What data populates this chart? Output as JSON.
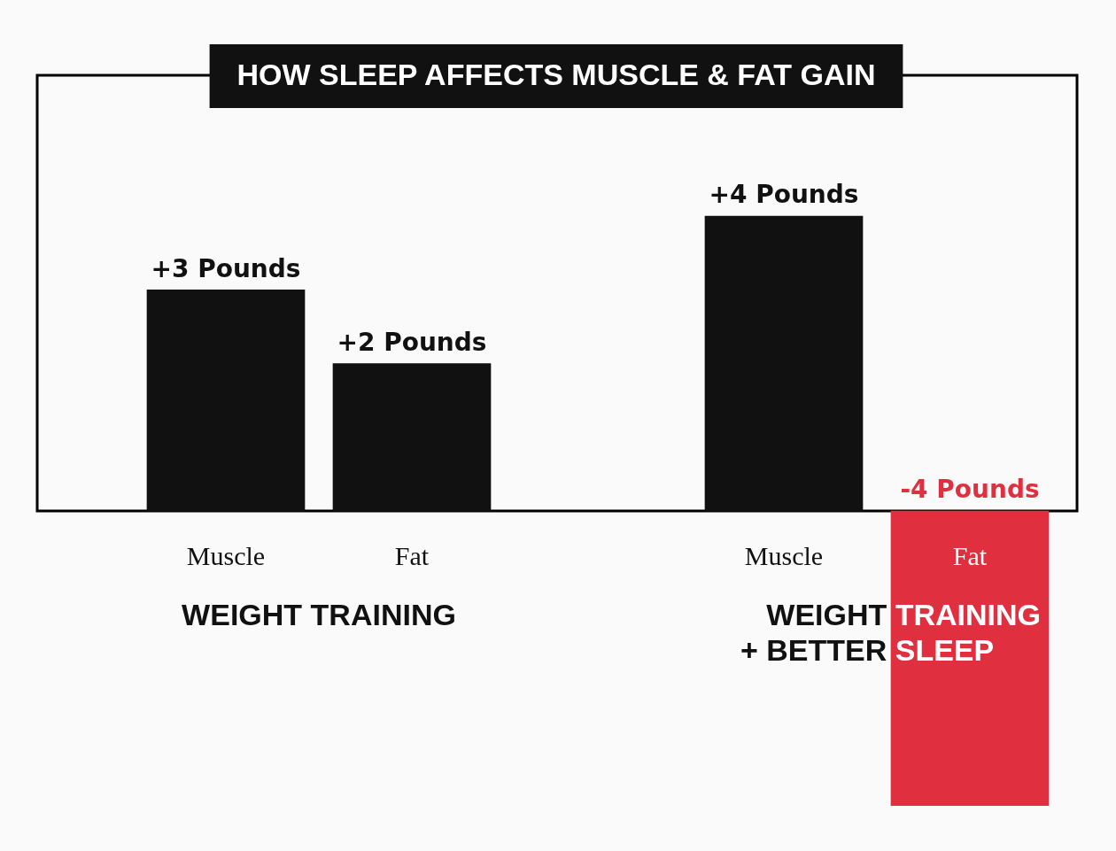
{
  "chart_data": {
    "type": "bar",
    "title": "HOW SLEEP AFFECTS MUSCLE & FAT GAIN",
    "categories": [
      "Muscle",
      "Fat",
      null,
      "Muscle",
      "Fat"
    ],
    "values": [
      3,
      2,
      null,
      4,
      -4
    ],
    "colors": [
      "#111111",
      "#111111",
      "#111111",
      "#111111",
      "#e03040"
    ],
    "value_labels": [
      "+3 Pounds",
      "+2 Pounds",
      null,
      "+4 Pounds",
      "-4 Pounds"
    ],
    "annotations": [
      "WEIGHT TRAINING",
      "WEIGHT TRAINING\n+ BETTER SLEEP"
    ],
    "legend": false
  }
}
